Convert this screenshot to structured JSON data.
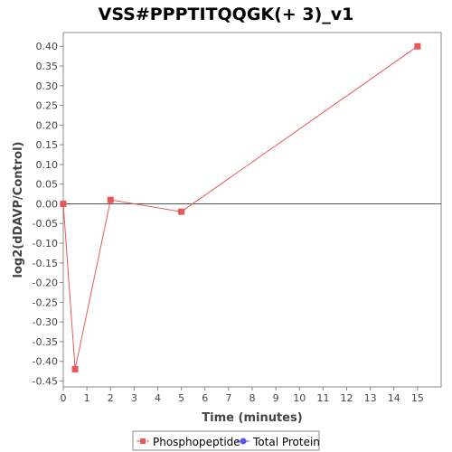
{
  "chart_data": {
    "type": "line",
    "title": "VSS#PPPTITQQGK(+ 3)_v1",
    "xlabel": "Time (minutes)",
    "ylabel": "log2(dDAVP/Control)",
    "xlim": [
      0,
      16
    ],
    "ylim": [
      -0.465,
      0.435
    ],
    "x_ticks": [
      0,
      1,
      2,
      3,
      4,
      5,
      6,
      7,
      8,
      9,
      10,
      11,
      12,
      13,
      14,
      15
    ],
    "y_ticks": [
      0.4,
      0.35,
      0.3,
      0.25,
      0.2,
      0.15,
      0.1,
      0.05,
      0.0,
      -0.05,
      -0.1,
      -0.15,
      -0.2,
      -0.25,
      -0.3,
      -0.35,
      -0.4,
      -0.45
    ],
    "y_tick_labels": [
      "0.40",
      "0.35",
      "0.30",
      "0.25",
      "0.20",
      "0.15",
      "0.10",
      "0.05",
      "0.00",
      "-0.05",
      "-0.10",
      "-0.15",
      "-0.20",
      "-0.25",
      "-0.30",
      "-0.35",
      "-0.40",
      "-0.45"
    ],
    "grid": false,
    "zero_line": true,
    "legend_position": "bottom",
    "series": [
      {
        "name": "Phosphopeptide",
        "color": "#e8585a",
        "marker": "square",
        "x": [
          0,
          0.5,
          2,
          5,
          15
        ],
        "y": [
          0.0,
          -0.42,
          0.01,
          -0.02,
          0.4
        ]
      },
      {
        "name": "Total Protein",
        "color": "#5a5ae8",
        "marker": "circle",
        "x": [],
        "y": []
      }
    ]
  }
}
